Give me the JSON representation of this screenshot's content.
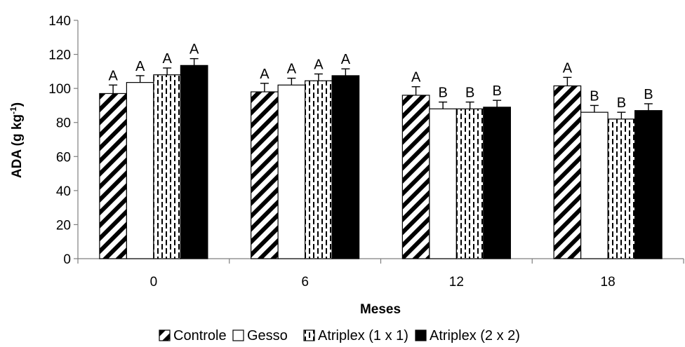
{
  "chart_data": {
    "type": "bar",
    "xlabel": "Meses",
    "ylabel_main": "ADA (g kg",
    "ylabel_sup": "-1",
    "ylabel_end": ")",
    "ylim": [
      0,
      140
    ],
    "yticks": [
      0,
      20,
      40,
      60,
      80,
      100,
      120,
      140
    ],
    "categories": [
      "0",
      "6",
      "12",
      "18"
    ],
    "grid": false,
    "legend_position": "bottom",
    "series": [
      {
        "name": "Controle",
        "pattern": "diagonal-stripes",
        "color": "#000000",
        "values": [
          97,
          98,
          96,
          101.5
        ],
        "errors": [
          5,
          5,
          5,
          5
        ],
        "letters": [
          "A",
          "A",
          "A",
          "A"
        ]
      },
      {
        "name": "Gesso",
        "pattern": "white",
        "color": "#000000",
        "values": [
          103.5,
          102,
          88,
          86
        ],
        "errors": [
          4,
          4,
          4,
          4
        ],
        "letters": [
          "A",
          "A",
          "B",
          "B"
        ]
      },
      {
        "name": "Atriplex (1 x 1)",
        "pattern": "dashed-vertical",
        "color": "#000000",
        "values": [
          108,
          104.5,
          88,
          82
        ],
        "errors": [
          4,
          4,
          4,
          4
        ],
        "letters": [
          "A",
          "A",
          "B",
          "B"
        ]
      },
      {
        "name": "Atriplex (2 x 2)",
        "pattern": "solid-black",
        "color": "#000000",
        "values": [
          113.5,
          107.5,
          89,
          87
        ],
        "errors": [
          4,
          4,
          4,
          4
        ],
        "letters": [
          "A",
          "A",
          "B",
          "B"
        ]
      }
    ]
  }
}
